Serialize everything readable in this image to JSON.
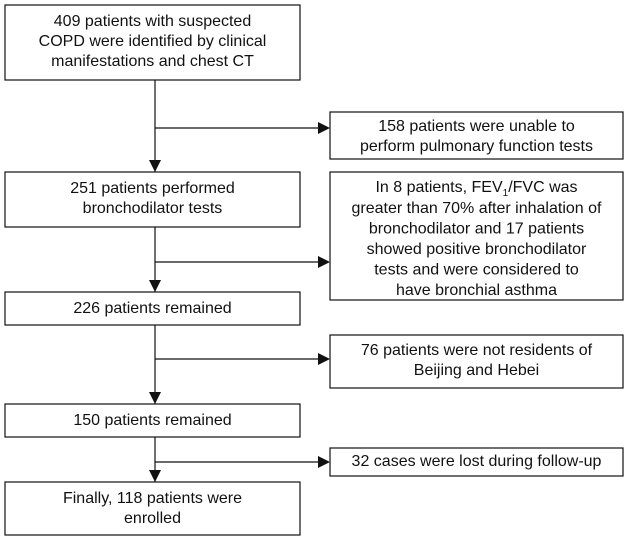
{
  "main_steps": [
    {
      "lines": [
        "409 patients with suspected",
        "COPD were identified by clinical",
        "manifestations and chest CT"
      ]
    },
    {
      "lines": [
        "251 patients performed",
        "bronchodilator tests"
      ]
    },
    {
      "lines": [
        "226 patients remained"
      ]
    },
    {
      "lines": [
        "150 patients remained"
      ]
    },
    {
      "lines": [
        "Finally, 118 patients were",
        "enrolled"
      ]
    }
  ],
  "exclusions": [
    {
      "lines": [
        "158 patients were unable to",
        "perform pulmonary function tests"
      ]
    },
    {
      "first_line": {
        "start": "In 8 patients, FEV",
        "subscript": "1",
        "end": "/FVC was"
      },
      "lines": [
        "greater than 70% after inhalation of",
        "bronchodilator and 17 patients",
        "showed positive bronchodilator",
        "tests and were considered to",
        "have bronchial asthma"
      ]
    },
    {
      "lines": [
        "76 patients were not residents of",
        "Beijing and Hebei"
      ]
    },
    {
      "lines": [
        "32 cases were lost during follow-up"
      ]
    }
  ]
}
